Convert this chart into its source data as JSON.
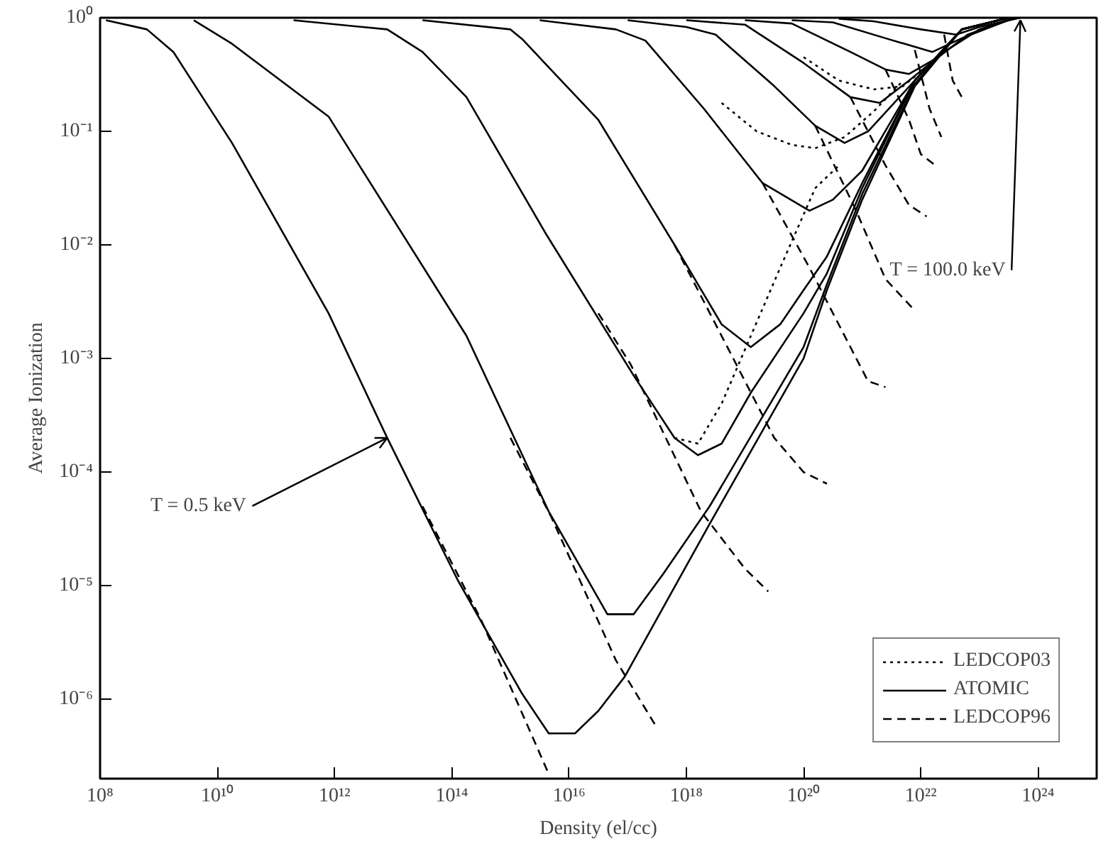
{
  "chart_data": {
    "type": "line",
    "xlabel": "Density (el/cc)",
    "ylabel": "Average Ionization",
    "log": "xy",
    "grid": false,
    "legend": "bottom right",
    "xlim": [
      100000000.0,
      1e+25
    ],
    "ylim": [
      2e-07,
      1
    ],
    "xticks": [
      {
        "value": 100000000.0,
        "label": "10⁸"
      },
      {
        "value": 10000000000.0,
        "label": "10¹⁰"
      },
      {
        "value": 1000000000000.0,
        "label": "10¹²"
      },
      {
        "value": 100000000000000.0,
        "label": "10¹⁴"
      },
      {
        "value": 1e+16,
        "label": "10¹⁶"
      },
      {
        "value": 1e+18,
        "label": "10¹⁸"
      },
      {
        "value": 1e+20,
        "label": "10²⁰"
      },
      {
        "value": 1e+22,
        "label": "10²²"
      },
      {
        "value": 1e+24,
        "label": "10²⁴"
      }
    ],
    "yticks": [
      {
        "value": 1e-06,
        "label": "10⁻⁶"
      },
      {
        "value": 1e-05,
        "label": "10⁻⁵"
      },
      {
        "value": 0.0001,
        "label": "10⁻⁴"
      },
      {
        "value": 0.001,
        "label": "10⁻³"
      },
      {
        "value": 0.01,
        "label": "10⁻²"
      },
      {
        "value": 0.1,
        "label": "10⁻¹"
      },
      {
        "value": 1,
        "label": "10⁰"
      }
    ],
    "annotations": [
      {
        "text": "T = 0.5 keV",
        "x": 7900000000000.0,
        "y": 0.0002
      },
      {
        "text": "T = 100.0 keV",
        "x": 5e+23,
        "y": 0.95
      }
    ],
    "series": [
      {
        "name": "LEDCOP03",
        "color": "#000000",
        "line_style": "dotted",
        "x": [
          6.3e+17,
          1.58e+18,
          4e+18,
          1.26e+19,
          4e+19,
          1.58e+20,
          4e+20
        ],
        "values": [
          0.0002,
          0.000178,
          0.0004,
          0.00158,
          0.0063,
          0.0316,
          0.05
        ]
      },
      {
        "color": "#000000",
        "line_style": "dotted",
        "x": [
          4e+18,
          1.58e+19,
          6.3e+19,
          1.58e+20,
          5e+20,
          1.58e+21,
          5e+21
        ],
        "values": [
          0.178,
          0.1,
          0.076,
          0.071,
          0.089,
          0.15,
          0.28
        ]
      },
      {
        "color": "#000000",
        "line_style": "dotted",
        "x": [
          1e+20,
          4e+20,
          1.58e+21,
          5e+21,
          2e+22
        ],
        "values": [
          0.45,
          0.28,
          0.234,
          0.25,
          0.45
        ]
      },
      {
        "name": "ATOMIC",
        "color": "#000000",
        "line_style": "solid",
        "x": [
          126000000.0,
          630000000.0,
          1780000000.0,
          17800000000.0,
          790000000000.0,
          7900000000000.0,
          126000000000000.0,
          1580000000000000.0,
          4500000000000000.0,
          1.26e+16,
          3.16e+16,
          8.9e+16,
          2.5e+18,
          1e+20,
          2.5e+20,
          1e+21,
          7.9e+21,
          5e+22,
          3.16e+23
        ],
        "values": [
          0.95,
          0.79,
          0.5,
          0.079,
          0.0025,
          0.0002,
          1.12e-05,
          1.12e-06,
          5e-07,
          5e-07,
          7.9e-07,
          1.58e-06,
          3.5e-05,
          0.001,
          0.004,
          0.025,
          0.25,
          0.79,
          1
        ]
      },
      {
        "color": "#000000",
        "line_style": "solid",
        "x": [
          3980000000.0,
          17800000000.0,
          790000000000.0,
          178000000000000.0,
          4500000000000000.0,
          4.5e+16,
          1.26e+17,
          4e+17,
          2.5e+18,
          1e+20,
          2.5e+20,
          1e+21,
          7.9e+21,
          5e+22,
          3.16e+23
        ],
        "values": [
          0.95,
          0.59,
          0.135,
          0.00158,
          4.5e-05,
          5.6e-06,
          5.6e-06,
          1.26e-05,
          5e-05,
          0.00126,
          0.0045,
          0.028,
          0.26,
          0.79,
          1
        ]
      },
      {
        "color": "#000000",
        "line_style": "solid",
        "x": [
          200000000000.0,
          7900000000000.0,
          31600000000000.0,
          178000000000000.0,
          4000000000000000.0,
          1.26e+17,
          6.3e+17,
          1.58e+18,
          4e+18,
          1.26e+19,
          1e+20,
          2.5e+20,
          1e+21,
          7.9e+21,
          5e+22,
          3.16e+23
        ],
        "values": [
          0.95,
          0.79,
          0.5,
          0.2,
          0.0126,
          0.00071,
          0.0002,
          0.000141,
          0.000178,
          0.0005,
          0.0025,
          0.0056,
          0.0316,
          0.28,
          0.79,
          1
        ]
      },
      {
        "color": "#000000",
        "line_style": "solid",
        "x": [
          31600000000000.0,
          1000000000000000.0,
          1580000000000000.0,
          3.16e+16,
          6.3e+17,
          4e+18,
          1.26e+19,
          4e+19,
          1e+20,
          2.5e+20,
          1e+21,
          7.9e+21,
          5e+22,
          3.16e+23
        ],
        "values": [
          0.95,
          0.79,
          0.65,
          0.126,
          0.01,
          0.002,
          0.00126,
          0.002,
          0.004,
          0.0079,
          0.035,
          0.28,
          0.79,
          1
        ]
      },
      {
        "color": "#000000",
        "line_style": "solid",
        "x": [
          3160000000000000.0,
          6.3e+16,
          2e+17,
          2e+18,
          2e+19,
          1.26e+20,
          3.16e+20,
          1e+21,
          7.9e+21,
          5e+22,
          3.16e+23
        ],
        "values": [
          0.95,
          0.79,
          0.63,
          0.158,
          0.035,
          0.02,
          0.025,
          0.045,
          0.28,
          0.79,
          1
        ]
      },
      {
        "color": "#000000",
        "line_style": "solid",
        "x": [
          1e+17,
          1e+18,
          3.16e+18,
          3.16e+19,
          1.58e+20,
          5e+20,
          1.26e+21,
          7.9e+21,
          5e+22,
          3.16e+23
        ],
        "values": [
          0.95,
          0.83,
          0.71,
          0.25,
          0.112,
          0.079,
          0.1,
          0.28,
          0.79,
          1
        ]
      },
      {
        "color": "#000000",
        "line_style": "solid",
        "x": [
          1e+18,
          1e+19,
          1e+20,
          6.3e+20,
          2e+21,
          6.3e+21,
          2.5e+22,
          1e+23,
          4e+23
        ],
        "values": [
          0.95,
          0.87,
          0.4,
          0.2,
          0.178,
          0.28,
          0.5,
          0.79,
          1
        ]
      },
      {
        "color": "#000000",
        "line_style": "solid",
        "x": [
          1e+19,
          6.3e+19,
          6.3e+20,
          2.5e+21,
          6.3e+21,
          2e+22,
          6.3e+22,
          4e+23
        ],
        "values": [
          0.95,
          0.89,
          0.5,
          0.35,
          0.32,
          0.45,
          0.71,
          1
        ]
      },
      {
        "color": "#000000",
        "line_style": "solid",
        "x": [
          6.3e+19,
          3.16e+20,
          2.5e+21,
          1.58e+22,
          5e+22,
          4e+23
        ],
        "values": [
          0.95,
          0.91,
          0.66,
          0.5,
          0.66,
          1
        ]
      },
      {
        "color": "#000000",
        "line_style": "solid",
        "x": [
          4e+20,
          1.58e+21,
          1e+22,
          4e+22,
          1e+23,
          5e+23
        ],
        "values": [
          0.98,
          0.93,
          0.79,
          0.71,
          0.83,
          1
        ]
      },
      {
        "name": "LEDCOP96",
        "color": "#000000",
        "line_style": "dashed",
        "x": [
          31600000000000.0,
          316000000000000.0,
          4500000000000000.0
        ],
        "values": [
          5e-05,
          5e-06,
          2.2e-07
        ]
      },
      {
        "color": "#000000",
        "line_style": "dashed",
        "x": [
          1000000000000000.0,
          5000000000000000.0,
          6.3e+16,
          3.16e+17
        ],
        "values": [
          0.0002,
          4e-05,
          2.2e-06,
          5.6e-07
        ]
      },
      {
        "color": "#000000",
        "line_style": "dashed",
        "x": [
          3.16e+16,
          1.12e+17,
          1.78e+18,
          1e+19,
          2.5e+19
        ],
        "values": [
          0.0025,
          0.00089,
          4.5e-05,
          1.41e-05,
          8.9e-06
        ]
      },
      {
        "color": "#000000",
        "line_style": "dashed",
        "x": [
          6.3e+17,
          4e+18,
          3.16e+19,
          1e+20,
          2.5e+20
        ],
        "values": [
          0.01,
          0.00158,
          0.0002,
          0.0001,
          7.9e-05
        ]
      },
      {
        "color": "#000000",
        "line_style": "dashed",
        "x": [
          2e+19,
          1.26e+20,
          6.3e+20,
          1.26e+21,
          2.5e+21
        ],
        "values": [
          0.035,
          0.0063,
          0.00126,
          0.00063,
          0.00056
        ]
      },
      {
        "color": "#000000",
        "line_style": "dashed",
        "x": [
          1.58e+20,
          7.9e+20,
          2.5e+21,
          7.1e+21
        ],
        "values": [
          0.112,
          0.02,
          0.005,
          0.0028
        ]
      },
      {
        "color": "#000000",
        "line_style": "dashed",
        "x": [
          6.3e+20,
          2.5e+21,
          6.3e+21,
          1.26e+22
        ],
        "values": [
          0.2,
          0.05,
          0.0224,
          0.0178
        ]
      },
      {
        "color": "#000000",
        "line_style": "dashed",
        "x": [
          2.5e+21,
          6.3e+21,
          1e+22,
          1.78e+22
        ],
        "values": [
          0.35,
          0.126,
          0.063,
          0.05
        ]
      },
      {
        "color": "#000000",
        "line_style": "dashed",
        "x": [
          7.9e+21,
          1.41e+22,
          2.24e+22
        ],
        "values": [
          0.52,
          0.158,
          0.089
        ]
      },
      {
        "color": "#000000",
        "line_style": "dashed",
        "x": [
          2.5e+22,
          3.5e+22,
          5e+22
        ],
        "values": [
          0.71,
          0.28,
          0.2
        ]
      }
    ]
  }
}
